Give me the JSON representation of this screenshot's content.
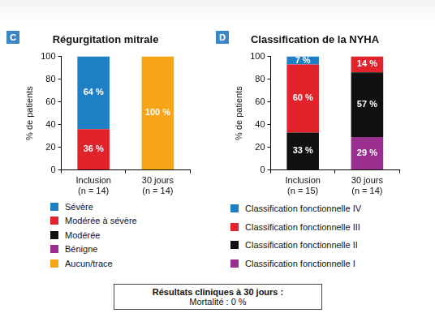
{
  "chart_data": [
    {
      "panel": "C",
      "type": "bar",
      "title": "Régurgitation mitrale",
      "y_label": "% de patients",
      "categories": [
        "Inclusion\n(n = 14)",
        "30 jours\n(n = 14)"
      ],
      "series": [
        {
          "name": "Sévère",
          "color": "#1f7fc4",
          "values": [
            64,
            null
          ],
          "value_labels": [
            "64 %",
            null
          ]
        },
        {
          "name": "Modérée à sévère",
          "color": "#e3232c",
          "values": [
            36,
            null
          ],
          "value_labels": [
            "36 %",
            null
          ]
        },
        {
          "name": "Modérée",
          "color": "#111111",
          "values": [
            null,
            null
          ],
          "value_labels": [
            null,
            null
          ]
        },
        {
          "name": "Bénigne",
          "color": "#9b2f8f",
          "values": [
            null,
            null
          ],
          "value_labels": [
            null,
            null
          ]
        },
        {
          "name": "Aucun/trace",
          "color": "#f6a519",
          "values": [
            null,
            100
          ],
          "value_labels": [
            null,
            "100 %"
          ]
        }
      ],
      "stacked": true,
      "data_labels": true,
      "grid": false,
      "legend": "bottom",
      "ylim": [
        0,
        100
      ],
      "yticks": [
        0,
        20,
        40,
        60,
        80,
        100
      ]
    },
    {
      "panel": "D",
      "type": "bar",
      "title": "Classification de la NYHA",
      "y_label": "% de patients",
      "categories": [
        "Inclusion\n(n = 15)",
        "30 jours\n(n = 14)"
      ],
      "series": [
        {
          "name": "Classification fonctionnelle IV",
          "color": "#1f7fc4",
          "values": [
            7,
            null
          ],
          "value_labels": [
            "7 %",
            null
          ]
        },
        {
          "name": "Classification fonctionnelle III",
          "color": "#e3232c",
          "values": [
            60,
            14
          ],
          "value_labels": [
            "60 %",
            "14 %"
          ]
        },
        {
          "name": "Classification fonctionnelle II",
          "color": "#111111",
          "values": [
            33,
            57
          ],
          "value_labels": [
            "33 %",
            "57 %"
          ]
        },
        {
          "name": "Classification fonctionnelle I",
          "color": "#9b2f8f",
          "values": [
            null,
            29
          ],
          "value_labels": [
            null,
            "29 %"
          ]
        }
      ],
      "stacked": true,
      "data_labels": true,
      "grid": false,
      "legend": "bottom",
      "ylim": [
        0,
        100
      ],
      "yticks": [
        0,
        20,
        40,
        60,
        80,
        100
      ]
    }
  ],
  "results_box": {
    "title": "Résultats cliniques à 30 jours :",
    "lines": [
      "Mortalité : 0 %"
    ]
  }
}
